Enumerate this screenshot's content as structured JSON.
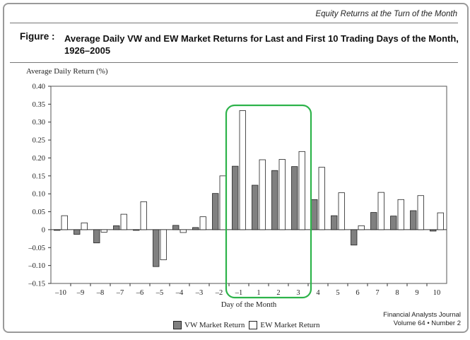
{
  "header": {
    "running_title": "Equity Returns at the Turn of the Month"
  },
  "figure": {
    "label": "Figure :",
    "title": "Average Daily VW and EW Market Returns for Last and First 10 Trading Days of the Month, 1926–2005"
  },
  "footer": {
    "journal_line1": "Financial Analysts Journal",
    "journal_line2": "Volume 64 • Number 2"
  },
  "colors": {
    "vw_fill": "#808080",
    "ew_fill": "#ffffff",
    "highlight": "#2db34a",
    "bar_stroke": "#222222"
  },
  "chart_data": {
    "type": "bar",
    "ylabel": "Average Daily Return (%)",
    "xlabel": "Day of the Month",
    "ylim": [
      -0.15,
      0.4
    ],
    "yticks": [
      0.4,
      0.35,
      0.3,
      0.25,
      0.2,
      0.15,
      0.1,
      0.05,
      0,
      -0.05,
      -0.1,
      -0.15
    ],
    "ytick_labels": [
      "0.40",
      "0.35",
      "0.30",
      "0.25",
      "0.20",
      "0.15",
      "0.10",
      "0.05",
      "0",
      "–0.05",
      "–0.10",
      "–0.15"
    ],
    "categories": [
      "–10",
      "–9",
      "–8",
      "–7",
      "–6",
      "–5",
      "–4",
      "–3",
      "–2",
      "–1",
      "1",
      "2",
      "3",
      "4",
      "5",
      "6",
      "7",
      "8",
      "9",
      "10"
    ],
    "series": [
      {
        "name": "VW Market Return",
        "values": [
          0.0,
          -0.013,
          -0.037,
          0.011,
          0.0,
          -0.103,
          0.012,
          0.006,
          0.101,
          0.177,
          0.124,
          0.165,
          0.176,
          0.084,
          0.039,
          -0.043,
          0.048,
          0.038,
          0.053,
          -0.004
        ]
      },
      {
        "name": "EW Market Return",
        "values": [
          0.039,
          0.019,
          -0.007,
          0.043,
          0.078,
          -0.084,
          -0.008,
          0.036,
          0.15,
          0.332,
          0.195,
          0.196,
          0.218,
          0.174,
          0.103,
          0.011,
          0.104,
          0.084,
          0.095,
          0.047
        ]
      }
    ],
    "highlight_range": [
      "–1",
      "3"
    ],
    "legend_position": "bottom"
  }
}
